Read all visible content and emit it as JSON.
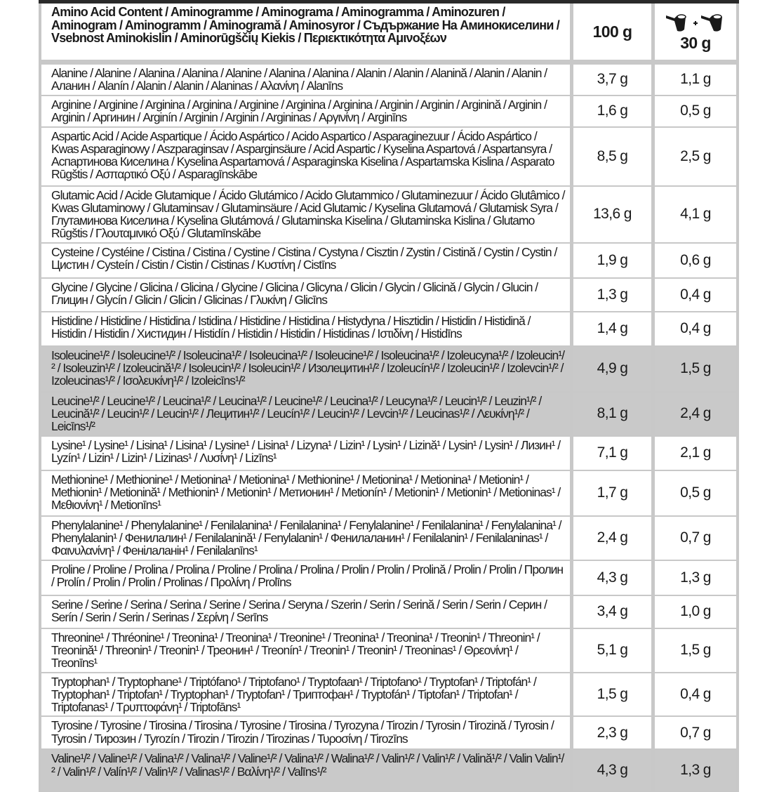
{
  "header": {
    "title": "Amino Acid Content / Aminogramme / Aminograma / Aminogramma / Aminozuren / Aminogram / Aminogramm / Aminogramă / Aminosyror / Съдържание На Аминокиселини / Vsebnost Aminokislin / Aminorūgščių Kiekis / Περιεκτικότητα Αμινοξέων",
    "col_100g": "100 g",
    "col_serving": "30 g",
    "serving_icon": "two-scoops-icon"
  },
  "colors": {
    "border": "#c8c8c8",
    "highlight_row": "#c9c9c9",
    "top_bar": "#2a2a2a"
  },
  "rows": [
    {
      "name": "Alanine / Alanine / Alanina / Alanina / Alanine / Alanina / Alanina / Alanin / Alanin / Alanină / Alanin / Alanin / Аланин / Alanín / Alanin / Alanin / Alaninas / Αλανίνη / Alanīns",
      "per100": "3,7 g",
      "perServing": "1,1 g",
      "highlight": false
    },
    {
      "name": "Arginine / Arginine / Arginina / Arginina / Arginine / Arginina / Arginina / Arginin / Arginin / Arginină / Arginin / Arginin / Аргинин / Arginín / Arginin / Arginin / Argininas / Αργινίνη / Arginīns",
      "per100": "1,6 g",
      "perServing": "0,5 g",
      "highlight": false
    },
    {
      "name": "Aspartic Acid / Acide Aspartique / Ácido Aspártico / Acido Aspartico / Asparaginezuur / Ácido Aspártico / Kwas Asparaginowy / Aszparaginsav / Asparginsäure / Acid Aspartic / Kyselina Aspartová / Aspartansyra / Аспартинова Киселина / Kyselina Aspartamová / Asparaginska Kiselina / Aspartamska Kislina / Asparato Rūgštis / Ασπαρτικό Οξύ / Asparagīnskābe",
      "per100": "8,5 g",
      "perServing": "2,5 g",
      "highlight": false
    },
    {
      "name": "Glutamic Acid / Acide Glutamique / Ácido Glutámico / Acido Glutammico / Glutaminezuur / Ácido Glutâmico / Kwas Glutaminowy / Glutaminsav / Glutaminsäure  / Acid Glutamic / Kyselina Glutamová / Glutamisk Syra / Глутаминова Киселина / Kyselina Glutámová / Glutaminska Kiselina / Glutaminska Kislina / Glutamo Rūgštis / Γλουταμινικό Οξύ / Glutamīnskābe",
      "per100": "13,6 g",
      "perServing": "4,1 g",
      "highlight": false
    },
    {
      "name": "Cysteine / Cystéine / Cistina / Cistina / Cystine / Cistina / Cystyna / Cisztin / Zystin / Cistină / Cystin / Cystin / Цистин / Cysteín / Cistin / Cistin / Cistinas / Κυστίνη / Cistīns",
      "per100": "1,9 g",
      "perServing": "0,6 g",
      "highlight": false
    },
    {
      "name": "Glycine / Glycine / Glicina / Glicina / Glycine / Glicina / Glicyna / Glicin / Glycin / Glicină / Glycin / Glucin / Глицин / Glycín / Glicin / Glicin / Glicinas / Γλυκίνη / Glicīns",
      "per100": "1,3 g",
      "perServing": "0,4 g",
      "highlight": false
    },
    {
      "name": "Histidine / Histidine / Histidina / Istidina / Histidine / Histidina / Histydyna / Hisztidin / Histidin / Histidină / Histidin / Histidin / Хистидин / Histidín / Histidin / Histidin / Histidinas / Ιστιδίνη / Histidīns",
      "per100": "1,4 g",
      "perServing": "0,4 g",
      "highlight": false
    },
    {
      "name": "Isoleucine¹/² / Isoleucine¹/² / Isoleucina¹/² / Isoleucina¹/² / Isoleucine¹/² / Isoleucina¹/² / Izoleucyna¹/² / Izoleucin¹/² / Isoleuzin¹/² / Izoleucină¹/² / Isoleucin¹/² / Isoleucin¹/² / Изолецитин¹/² / Izoleucín¹/² / Izoleucin¹/² / Izolevcin¹/² / Izoleucinas¹/² / Ισολευκίνη¹/² / Izoleicīns¹/²",
      "per100": "4,9 g",
      "perServing": "1,5 g",
      "highlight": true
    },
    {
      "name": "Leucine¹/² / Leucine¹/² / Leucina¹/² / Leucina¹/² / Leucine¹/² / Leucina¹/² / Leucyna¹/² / Leucin¹/² / Leuzin¹/² / Leucină¹/² / Leucin¹/² / Leucin¹/² / Лецитин¹/² / Leucín¹/² / Leucin¹/² / Levcin¹/² / Leucinas¹/² / Λευκίνη¹/² / Leicīns¹/²",
      "per100": "8,1 g",
      "perServing": "2,4 g",
      "highlight": true
    },
    {
      "name": "Lysine¹ / Lysine¹ / Lisina¹ / Lisina¹ / Lysine¹ / Lisina¹ / Lizyna¹ / Lizin¹ / Lysin¹ / Lizină¹ / Lysin¹ / Lysin¹ / Лизин¹ / Lyzín¹ / Lizin¹ / Lizin¹ / Lizinas¹ / Λυσίνη¹ / Lizīns¹",
      "per100": "7,1 g",
      "perServing": "2,1 g",
      "highlight": false
    },
    {
      "name": "Methionine¹ / Methionine¹ / Metionina¹ / Metionina¹ / Methionine¹ / Metionina¹ / Metionina¹ / Metionin¹ / Methionin¹ / Metionină¹ / Methionin¹ / Metionin¹ / Метионин¹ / Metionín¹ / Metionin¹ / Metionin¹ / Metioninas¹ / Μεθιονίνη¹ / Metionīns¹",
      "per100": "1,7 g",
      "perServing": "0,5 g",
      "highlight": false
    },
    {
      "name": "Phenylalanine¹ / Phenylalanine¹ / Fenilalanina¹ / Fenilalanina¹ / Fenylalanine¹ / Fenilalanina¹ / Fenylalanina¹ / Phenylalanin¹ / Фенилалин¹ / Fenilalanină¹ / Fenylalanin¹ / Фенилаланин¹ / Fenilalanin¹ / Fenilalaninas¹ / Φαινυλανίνη¹ / Фенiлаланiн¹ / Fenilalanīns¹",
      "per100": "2,4 g",
      "perServing": "0,7 g",
      "highlight": false
    },
    {
      "name": "Proline / Proline / Prolina / Prolina / Proline / Prolina / Prolina / Prolin / Prolin / Prolină / Prolin / Prolin / Пролин / Prolín / Prolin / Prolin / Prolinas / Προλίνη / Prolīns",
      "per100": "4,3 g",
      "perServing": "1,3 g",
      "highlight": false
    },
    {
      "name": "Serine / Serine / Serina / Serina / Serine / Serina / Seryna / Szerin / Serin / Serină / Serin / Serin / Серин / Serín / Serin / Serin / Serinas / Σερίνη / Serīns",
      "per100": "3,4 g",
      "perServing": "1,0 g",
      "highlight": false
    },
    {
      "name": "Threonine¹ / Thréonine¹ / Treonina¹ / Treonina¹ / Treonine¹ / Treonina¹ / Treonina¹ / Treonin¹ / Threonin¹ / Treonină¹ / Threonin¹ / Treonin¹ / Треонин¹ / Treonín¹ / Treonin¹ / Treonin¹ / Treoninas¹ / Θρεονίνη¹ / Treonīns¹",
      "per100": "5,1 g",
      "perServing": "1,5 g",
      "highlight": false
    },
    {
      "name": "Tryptophan¹ / Tryptophane¹ / Triptófano¹ / Triptofano¹ / Tryptofaan¹ / Triptofano¹ / Tryptofan¹ / Triptofán¹ / Tryptophan¹ / Triptofan¹ / Tryptophan¹ / Tryptofan¹ / Триптофан¹ / Tryptofán¹ / Tiptofan¹ / Triptofan¹ / Triptofanas¹ / Τρυπτοφάνη¹ / Triptofāns¹",
      "per100": "1,5 g",
      "perServing": "0,4 g",
      "highlight": false
    },
    {
      "name": "Tyrosine / Tyrosine / Tirosina / Tirosina / Tyrosine / Tirosina / Tyrozyna / Tirozin / Tyrosin / Tirozină / Tyrosin / Tyrosin / Тирозин / Tyrozín / Tirozin / Tirozin / Tirozinas / Τυροσίνη / Tirozīns",
      "per100": "2,3 g",
      "perServing": "0,7 g",
      "highlight": false
    },
    {
      "name": "Valine¹/² / Valine¹/² / Valina¹/² / Valina¹/² / Valine¹/² / Valina¹/² / Walina¹/² / Valin¹/² / Valin¹/² / Valină¹/² / Valin Valin¹/² / Valin¹/² / Valín¹/² / Valin¹/² / Valinas¹/² / Βαλίνη¹/² / Valīns¹/²",
      "per100": "4,3 g",
      "perServing": "1,3 g",
      "highlight": true
    }
  ]
}
